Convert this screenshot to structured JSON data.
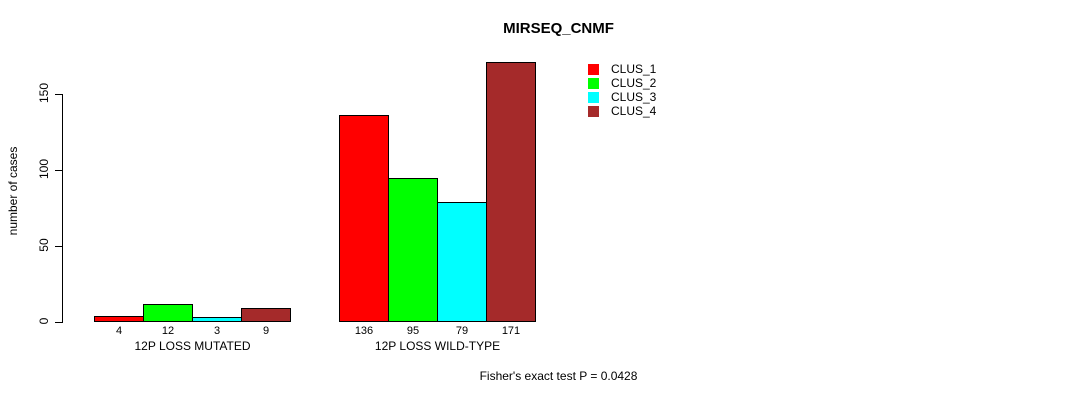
{
  "chart_data": {
    "type": "bar",
    "title": "MIRSEQ_CNMF",
    "ylabel": "number of cases",
    "yticks": [
      0,
      50,
      100,
      150
    ],
    "ylim": [
      0,
      175
    ],
    "grid": false,
    "legend_position": "top-right",
    "categories": [
      "12P LOSS MUTATED",
      "12P LOSS WILD-TYPE"
    ],
    "series": [
      {
        "name": "CLUS_1",
        "color": "#ff0000",
        "values": [
          4,
          136
        ]
      },
      {
        "name": "CLUS_2",
        "color": "#00ff00",
        "values": [
          12,
          95
        ]
      },
      {
        "name": "CLUS_3",
        "color": "#00ffff",
        "values": [
          3,
          79
        ]
      },
      {
        "name": "CLUS_4",
        "color": "#a52a2a",
        "values": [
          9,
          171
        ]
      }
    ],
    "annotation": "Fisher's exact test P = 0.0428"
  }
}
